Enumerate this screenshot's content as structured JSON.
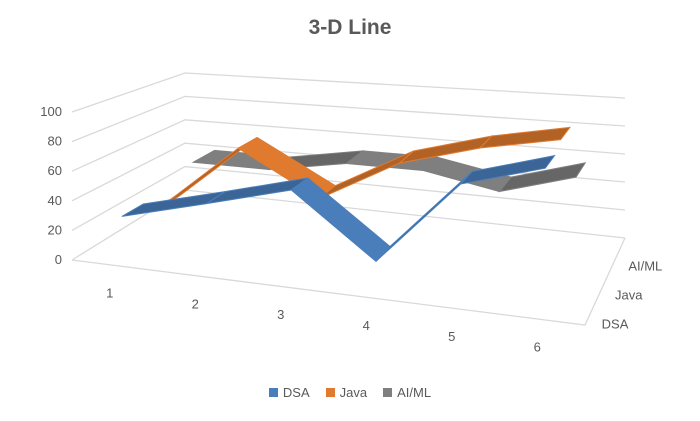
{
  "chart_data": {
    "type": "line",
    "variant": "3-D line",
    "title": "3-D Line",
    "categories": [
      "1",
      "2",
      "3",
      "4",
      "5",
      "6"
    ],
    "series": [
      {
        "name": "DSA",
        "color": "#4a7ebb",
        "values": [
          30,
          45,
          60,
          20,
          75,
          90
        ]
      },
      {
        "name": "Java",
        "color": "#e07a2f",
        "values": [
          20,
          70,
          40,
          70,
          85,
          95
        ]
      },
      {
        "name": "AI/ML",
        "color": "#7f7f7f",
        "values": [
          40,
          40,
          50,
          50,
          40,
          55
        ]
      }
    ],
    "yticks": [
      "0",
      "20",
      "40",
      "60",
      "80",
      "100"
    ],
    "ylim": [
      0,
      100
    ],
    "grid": true,
    "legend": "bottom"
  }
}
